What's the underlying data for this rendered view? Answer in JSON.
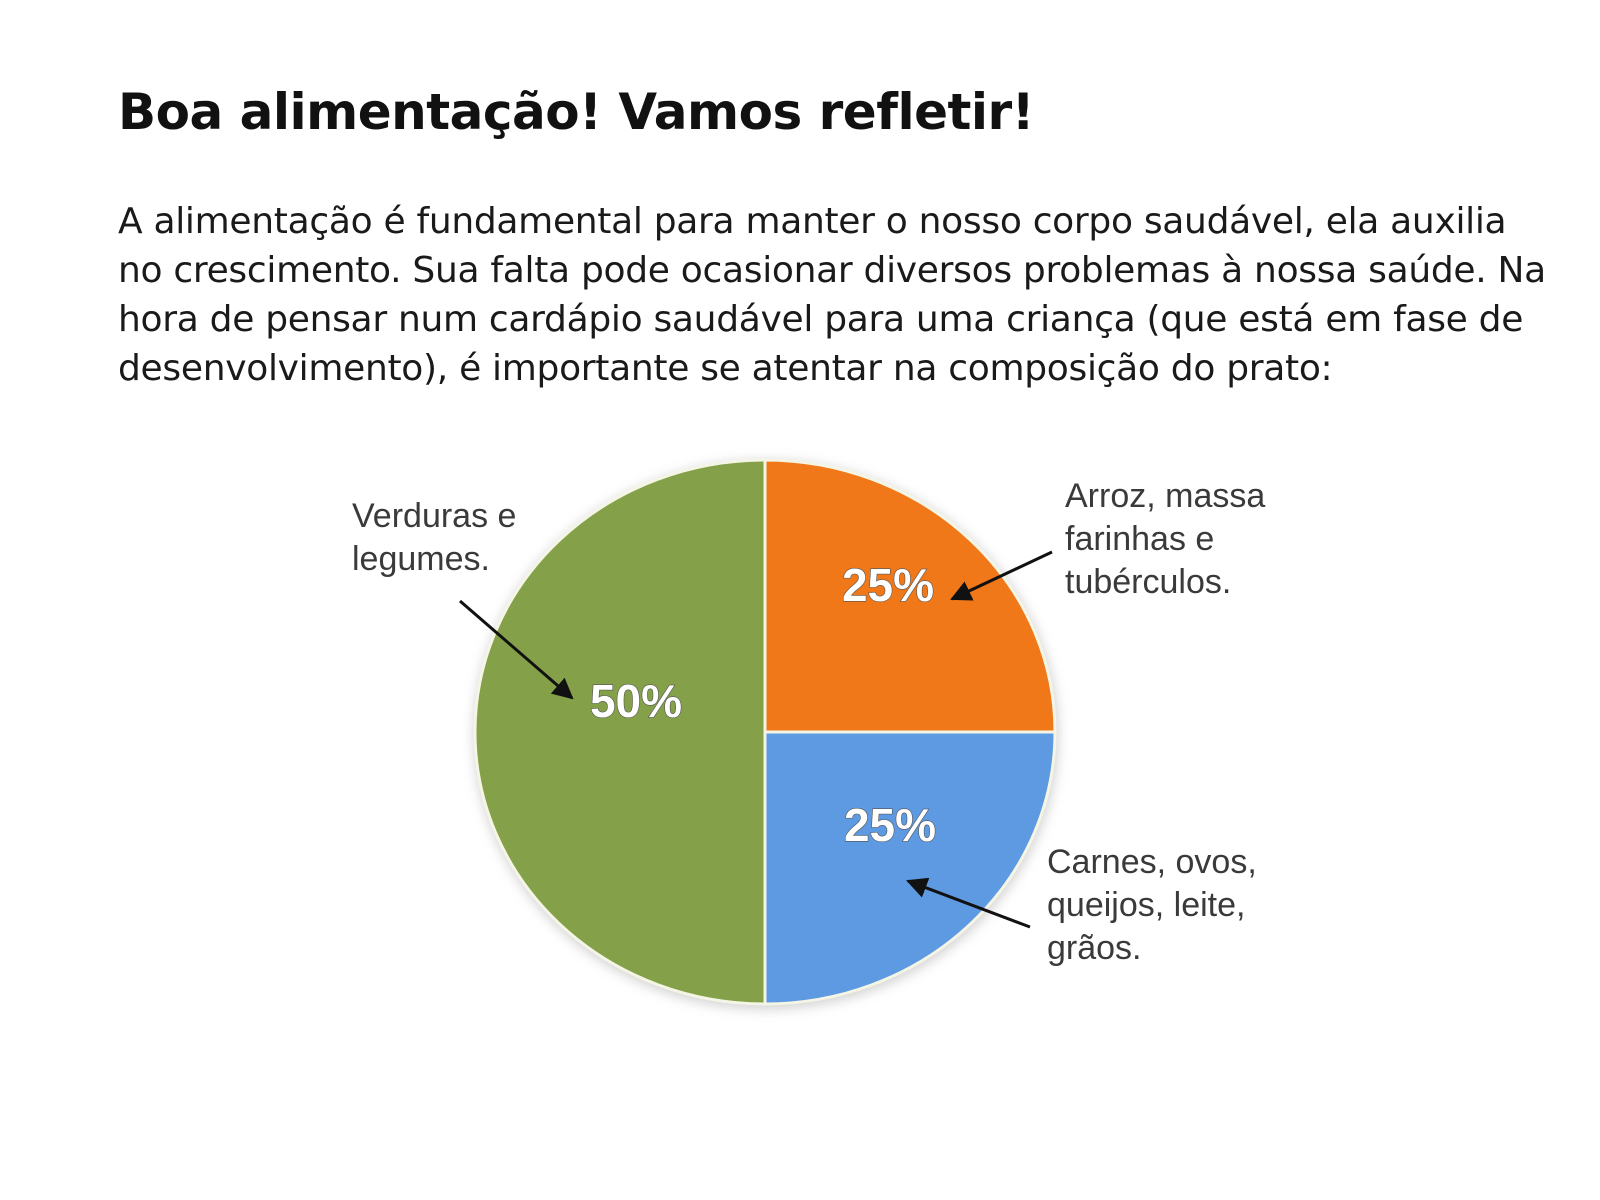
{
  "page": {
    "title": "Boa alimentação! Vamos refletir!",
    "body": "A alimentação é fundamental para manter o nosso corpo saudável, ela auxilia no crescimento. Sua falta pode ocasionar diversos problemas à nossa saúde. Na hora de pensar num cardápio saudável para uma criança (que está em fase de desenvolvimento), é importante se atentar na composição do prato:"
  },
  "chart_data": {
    "type": "pie",
    "slices": [
      {
        "label_lines": [
          "Arroz, massa",
          "farinhas e",
          "tubérculos."
        ],
        "value": 25,
        "value_label": "25%",
        "color": "#f07819"
      },
      {
        "label_lines": [
          "Carnes, ovos,",
          "queijos, leite,",
          "grãos."
        ],
        "value": 25,
        "value_label": "25%",
        "color": "#5d9ae2"
      },
      {
        "label_lines": [
          "Verduras e",
          "legumes."
        ],
        "value": 50,
        "value_label": "50%",
        "color": "#84a048"
      }
    ],
    "start_angle": "12 o'clock, clockwise",
    "legend": "none",
    "annotations": "callout arrows from each category label to its percentage"
  }
}
